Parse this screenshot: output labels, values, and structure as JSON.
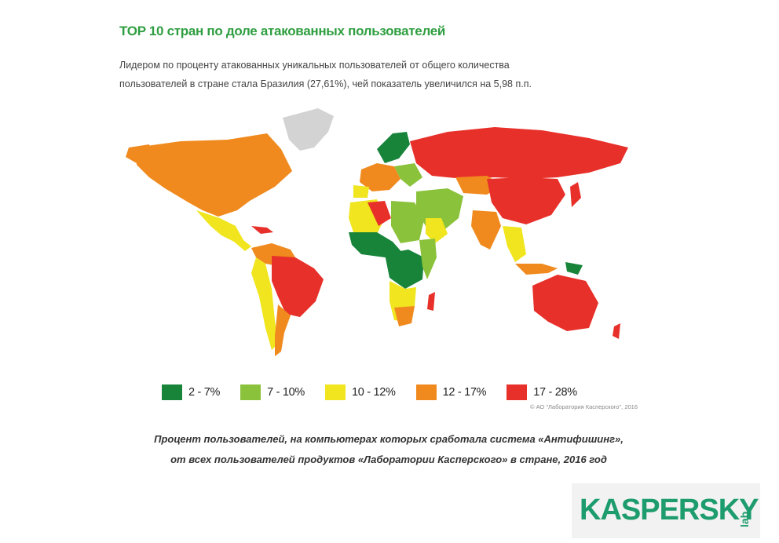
{
  "title": "TOP 10 стран по доле атакованных пользователей",
  "lead_lines": [
    "Лидером по проценту атакованных уникальных пользователей от общего количества",
    "пользователей в стране стала Бразилия (27,61%), чей показатель увеличился на 5,98 п.п."
  ],
  "legend": [
    {
      "label": "2 - 7%",
      "color": "#17843a"
    },
    {
      "label": "7 - 10%",
      "color": "#8bc23c"
    },
    {
      "label": "10 - 12%",
      "color": "#f0e51e"
    },
    {
      "label": "12 - 17%",
      "color": "#f08a1e"
    },
    {
      "label": "17 - 28%",
      "color": "#e8302a"
    }
  ],
  "no_data_color": "#d3d3d3",
  "copyright": "© АО \"Лаборатория Касперского\", 2016",
  "caption_lines": [
    "Процент пользователей, на компьютерах которых сработала система «Антифишинг»,",
    "от всех пользователей продуктов «Лаборатории Касперского» в стране, 2016 год"
  ],
  "logo": {
    "main": "KASPERSKY",
    "suffix": "lab",
    "color": "#1d9c6d"
  }
}
